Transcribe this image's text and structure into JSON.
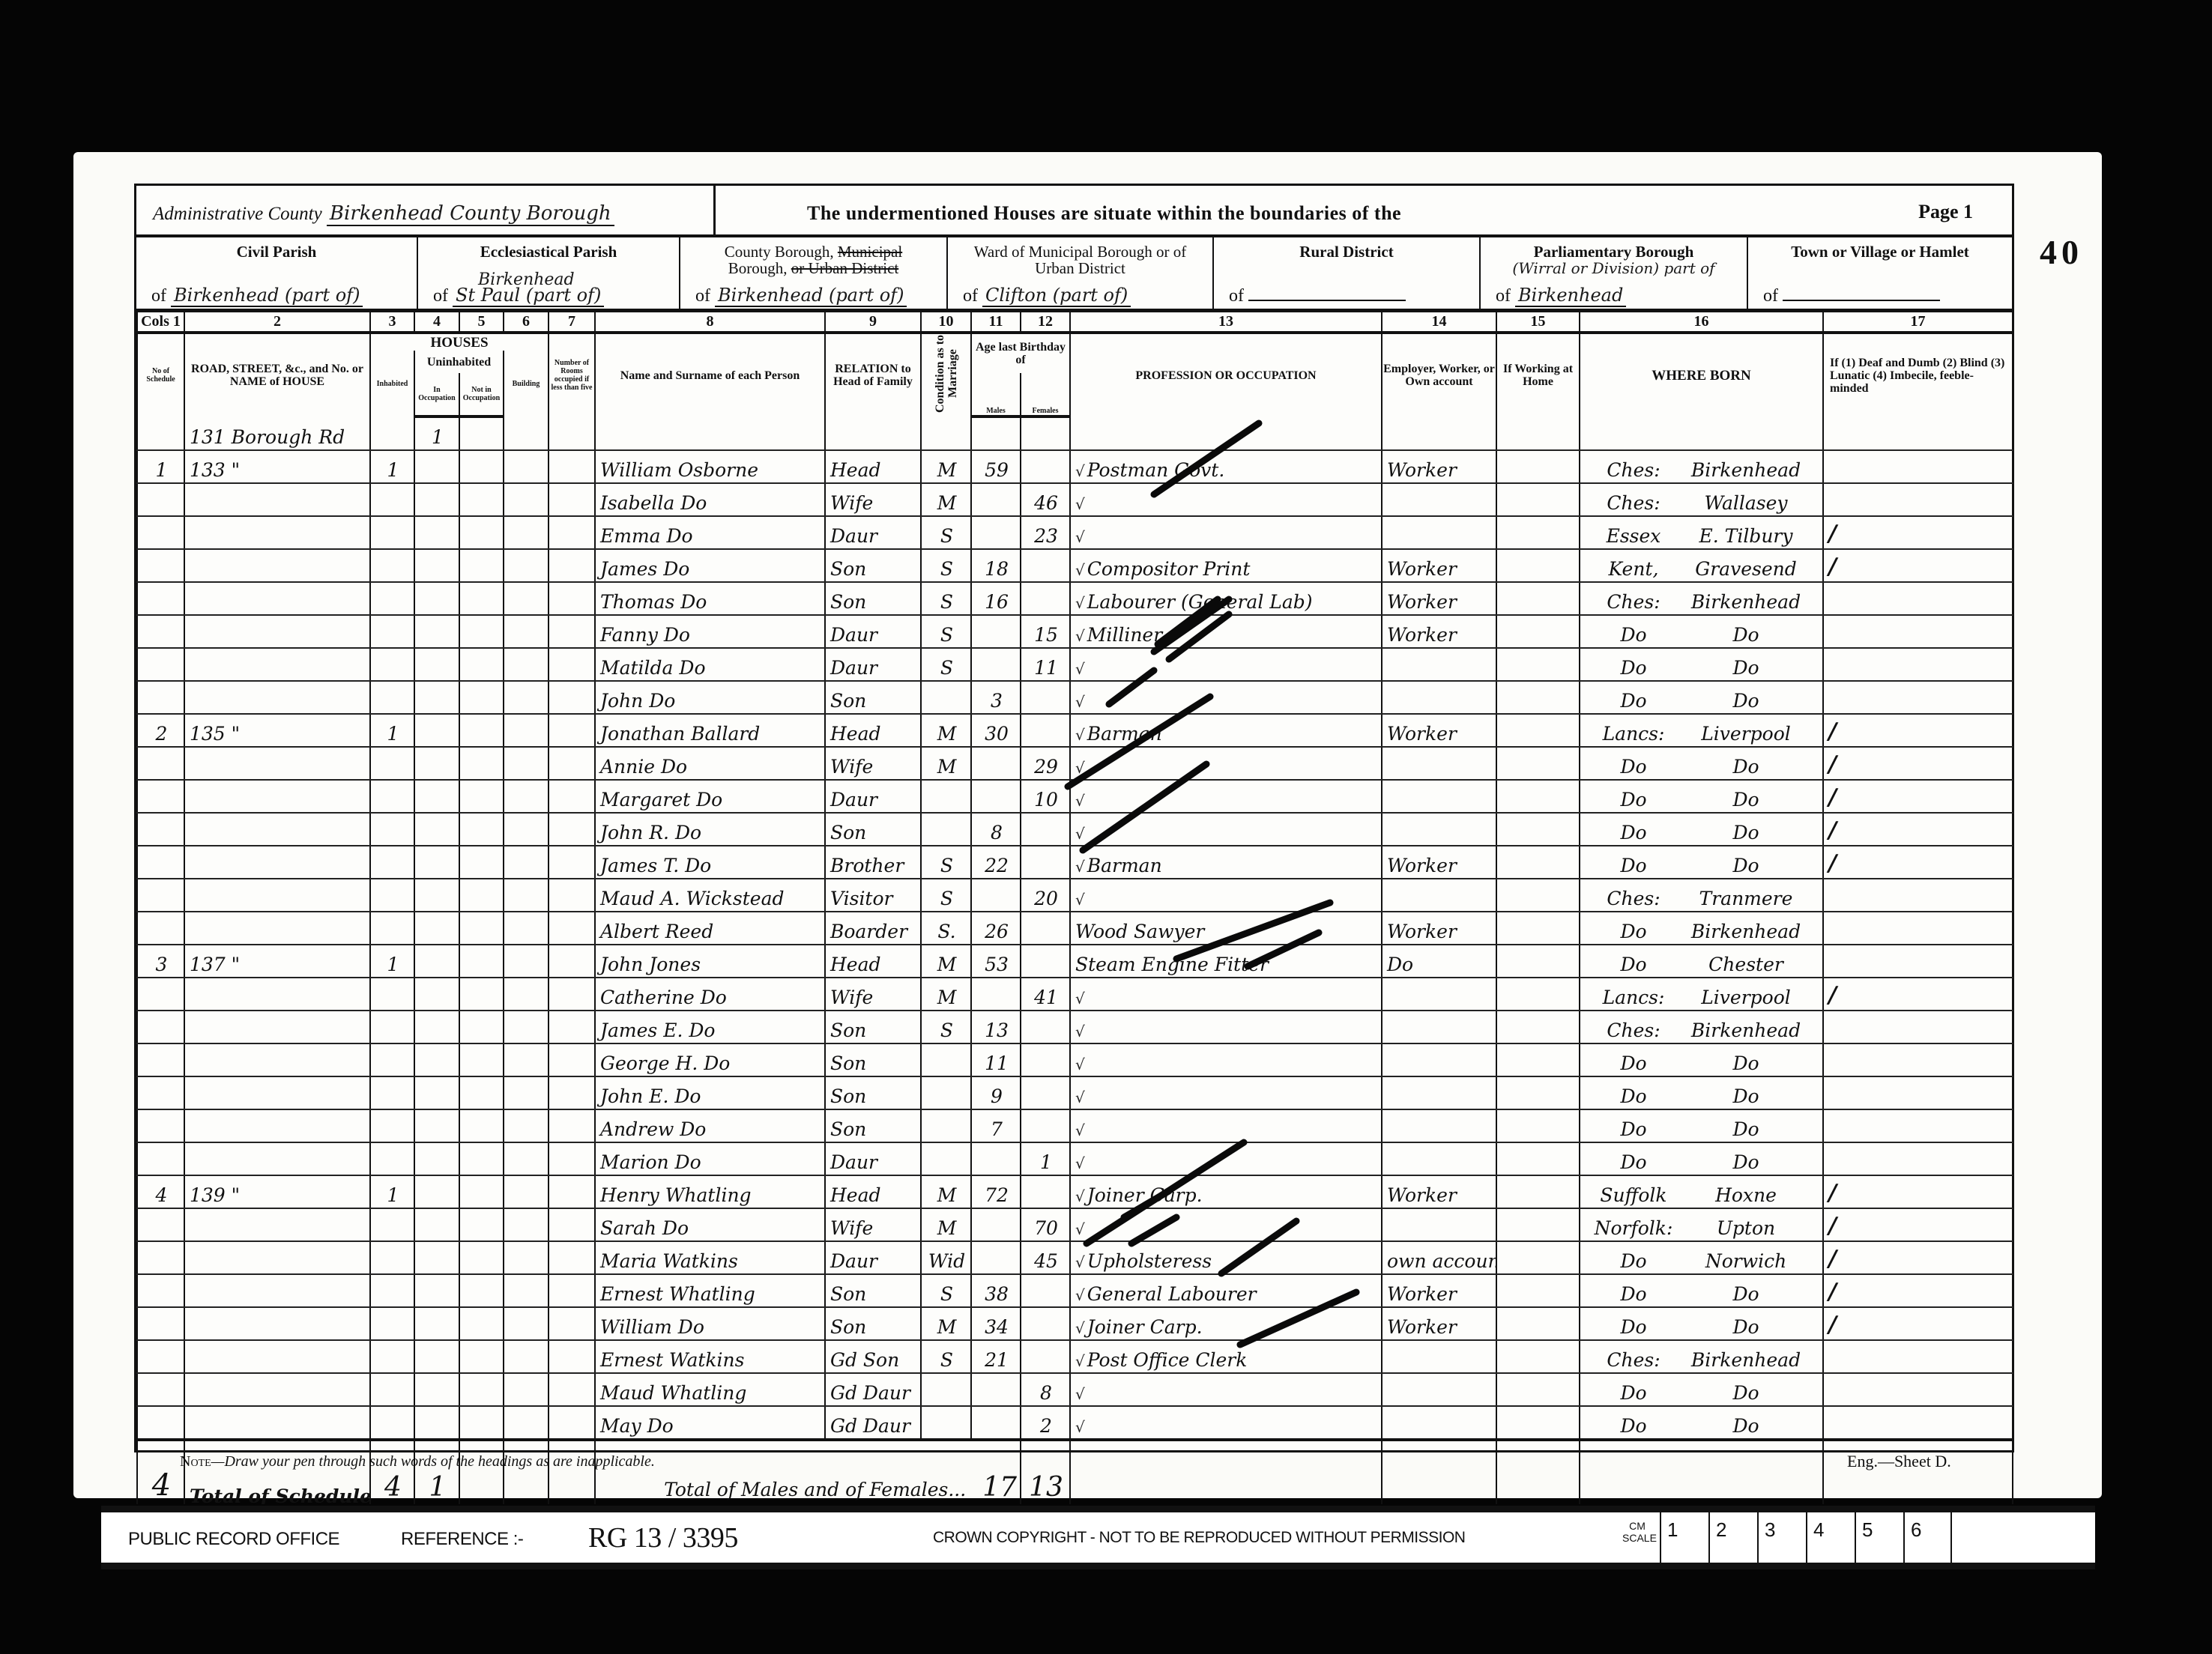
{
  "header": {
    "admin_county_label": "Administrative County",
    "admin_county_value": "Birkenhead County Borough",
    "undermentioned": "The undermentioned Houses are situate within the boundaries of the",
    "page": "Page 1",
    "folio": "40",
    "civil_parish": {
      "label": "Civil Parish",
      "of": "of",
      "value": "Birkenhead (part of)"
    },
    "ecclesiastical_parish": {
      "label": "Ecclesiastical Parish",
      "of": "of",
      "above": "Birkenhead",
      "value": "St Paul (part of)"
    },
    "county_borough": {
      "label_1": "County Borough,",
      "label_struck_1": "Municipal",
      "label_2": "Borough,",
      "label_struck_2": "or Urban District",
      "of": "of",
      "value": "Birkenhead (part of)"
    },
    "ward": {
      "label": "Ward of Municipal Borough or of Urban District",
      "of": "of",
      "value": "Clifton (part of)"
    },
    "rural_district": {
      "label": "Rural District",
      "of": "of",
      "value": ""
    },
    "parliamentary": {
      "label": "Parliamentary Borough",
      "division": "(Wirral or Division) part of",
      "of": "of",
      "value": "Birkenhead"
    },
    "town": {
      "label": "Town or Village or Hamlet",
      "of": "of",
      "value": ""
    }
  },
  "columns": {
    "numbers": [
      "Cols 1",
      "2",
      "3",
      "4",
      "5",
      "6",
      "7",
      "8",
      "9",
      "10",
      "11",
      "12",
      "13",
      "14",
      "15",
      "16",
      "17"
    ],
    "schedule": "No of Schedule",
    "road": "ROAD, STREET, &c., and No. or NAME of HOUSE",
    "houses": "HOUSES",
    "inhabited": "Inhabited",
    "uninhabited": "Uninhabited",
    "in_occupation": "In Occupation",
    "not_in_occupation": "Not in Occupation",
    "building": "Building",
    "rooms": "Number of Rooms occupied if less than five",
    "name": "Name and Surname of each Person",
    "relation": "RELATION to Head of Family",
    "condition": "Condition as to Marriage",
    "age": "Age last Birthday of",
    "males": "Males",
    "females": "Females",
    "occupation": "PROFESSION OR OCCUPATION",
    "employment": "Employer, Worker, or Own account",
    "at_home": "If Working at Home",
    "where_born": "WHERE BORN",
    "infirmity": "If (1) Deaf and Dumb (2) Blind (3) Lunatic (4) Imbecile, feeble-minded"
  },
  "rows": [
    {
      "schedule": "",
      "address": "131 Borough Rd",
      "inhabited": "",
      "in_occupation": "1",
      "name": "",
      "relation": "",
      "condition": "",
      "age_m": "",
      "age_f": "",
      "occupation": "",
      "employment": "",
      "born_county": "",
      "born_place": "",
      "tick": false,
      "col17": false
    },
    {
      "schedule": "1",
      "address": "133   \"",
      "inhabited": "1",
      "in_occupation": "",
      "name": "William Osborne",
      "relation": "Head",
      "condition": "M",
      "age_m": "59",
      "age_f": "",
      "occupation": "Postman Govt.",
      "employment": "Worker",
      "born_county": "Ches:",
      "born_place": "Birkenhead",
      "tick": true,
      "col17": false
    },
    {
      "schedule": "",
      "address": "",
      "inhabited": "",
      "in_occupation": "",
      "name": "Isabella   Do",
      "relation": "Wife",
      "condition": "M",
      "age_m": "",
      "age_f": "46",
      "occupation": "",
      "employment": "",
      "born_county": "Ches:",
      "born_place": "Wallasey",
      "tick": true,
      "col17": false
    },
    {
      "schedule": "",
      "address": "",
      "inhabited": "",
      "in_occupation": "",
      "name": "Emma   Do",
      "relation": "Daur",
      "condition": "S",
      "age_m": "",
      "age_f": "23",
      "occupation": "",
      "employment": "",
      "born_county": "Essex",
      "born_place": "E. Tilbury",
      "tick": true,
      "col17": true
    },
    {
      "schedule": "",
      "address": "",
      "inhabited": "",
      "in_occupation": "",
      "name": "James   Do",
      "relation": "Son",
      "condition": "S",
      "age_m": "18",
      "age_f": "",
      "occupation": "Compositor Print",
      "employment": "Worker",
      "born_county": "Kent,",
      "born_place": "Gravesend",
      "tick": true,
      "col17": true
    },
    {
      "schedule": "",
      "address": "",
      "inhabited": "",
      "in_occupation": "",
      "name": "Thomas   Do",
      "relation": "Son",
      "condition": "S",
      "age_m": "16",
      "age_f": "",
      "occupation": "Labourer (General Lab)",
      "employment": "Worker",
      "born_county": "Ches:",
      "born_place": "Birkenhead",
      "tick": true,
      "col17": false
    },
    {
      "schedule": "",
      "address": "",
      "inhabited": "",
      "in_occupation": "",
      "name": "Fanny   Do",
      "relation": "Daur",
      "condition": "S",
      "age_m": "",
      "age_f": "15",
      "occupation": "Milliner",
      "employment": "Worker",
      "born_county": "Do",
      "born_place": "Do",
      "tick": true,
      "col17": false
    },
    {
      "schedule": "",
      "address": "",
      "inhabited": "",
      "in_occupation": "",
      "name": "Matilda   Do",
      "relation": "Daur",
      "condition": "S",
      "age_m": "",
      "age_f": "11",
      "occupation": "",
      "employment": "",
      "born_county": "Do",
      "born_place": "Do",
      "tick": true,
      "col17": false
    },
    {
      "schedule": "",
      "address": "",
      "inhabited": "",
      "in_occupation": "",
      "name": "John   Do",
      "relation": "Son",
      "condition": "",
      "age_m": "3",
      "age_f": "",
      "occupation": "",
      "employment": "",
      "born_county": "Do",
      "born_place": "Do",
      "tick": true,
      "col17": false
    },
    {
      "schedule": "2",
      "address": "135   \"",
      "inhabited": "1",
      "in_occupation": "",
      "name": "Jonathan Ballard",
      "relation": "Head",
      "condition": "M",
      "age_m": "30",
      "age_f": "",
      "occupation": "Barman",
      "employment": "Worker",
      "born_county": "Lancs:",
      "born_place": "Liverpool",
      "tick": true,
      "col17": true
    },
    {
      "schedule": "",
      "address": "",
      "inhabited": "",
      "in_occupation": "",
      "name": "Annie   Do",
      "relation": "Wife",
      "condition": "M",
      "age_m": "",
      "age_f": "29",
      "occupation": "",
      "employment": "",
      "born_county": "Do",
      "born_place": "Do",
      "tick": true,
      "col17": true
    },
    {
      "schedule": "",
      "address": "",
      "inhabited": "",
      "in_occupation": "",
      "name": "Margaret   Do",
      "relation": "Daur",
      "condition": "",
      "age_m": "",
      "age_f": "10",
      "occupation": "",
      "employment": "",
      "born_county": "Do",
      "born_place": "Do",
      "tick": true,
      "col17": true
    },
    {
      "schedule": "",
      "address": "",
      "inhabited": "",
      "in_occupation": "",
      "name": "John R.   Do",
      "relation": "Son",
      "condition": "",
      "age_m": "8",
      "age_f": "",
      "occupation": "",
      "employment": "",
      "born_county": "Do",
      "born_place": "Do",
      "tick": true,
      "col17": true
    },
    {
      "schedule": "",
      "address": "",
      "inhabited": "",
      "in_occupation": "",
      "name": "James T.   Do",
      "relation": "Brother",
      "condition": "S",
      "age_m": "22",
      "age_f": "",
      "occupation": "Barman",
      "employment": "Worker",
      "born_county": "Do",
      "born_place": "Do",
      "tick": true,
      "col17": true
    },
    {
      "schedule": "",
      "address": "",
      "inhabited": "",
      "in_occupation": "",
      "name": "Maud A. Wickstead",
      "relation": "Visitor",
      "condition": "S",
      "age_m": "",
      "age_f": "20",
      "occupation": "",
      "employment": "",
      "born_county": "Ches:",
      "born_place": "Tranmere",
      "tick": true,
      "col17": false
    },
    {
      "schedule": "",
      "address": "",
      "inhabited": "",
      "in_occupation": "",
      "name": "Albert Reed",
      "relation": "Boarder",
      "condition": "S.",
      "age_m": "26",
      "age_f": "",
      "occupation": "Wood Sawyer",
      "employment": "Worker",
      "born_county": "Do",
      "born_place": "Birkenhead",
      "tick": false,
      "col17": false
    },
    {
      "schedule": "3",
      "address": "137   \"",
      "inhabited": "1",
      "in_occupation": "",
      "name": "John Jones",
      "relation": "Head",
      "condition": "M",
      "age_m": "53",
      "age_f": "",
      "occupation": "Steam Engine Fitter",
      "employment": "Do",
      "born_county": "Do",
      "born_place": "Chester",
      "tick": false,
      "col17": false
    },
    {
      "schedule": "",
      "address": "",
      "inhabited": "",
      "in_occupation": "",
      "name": "Catherine   Do",
      "relation": "Wife",
      "condition": "M",
      "age_m": "",
      "age_f": "41",
      "occupation": "",
      "employment": "",
      "born_county": "Lancs:",
      "born_place": "Liverpool",
      "tick": true,
      "col17": true
    },
    {
      "schedule": "",
      "address": "",
      "inhabited": "",
      "in_occupation": "",
      "name": "James E.   Do",
      "relation": "Son",
      "condition": "S",
      "age_m": "13",
      "age_f": "",
      "occupation": "",
      "employment": "",
      "born_county": "Ches:",
      "born_place": "Birkenhead",
      "tick": true,
      "col17": false
    },
    {
      "schedule": "",
      "address": "",
      "inhabited": "",
      "in_occupation": "",
      "name": "George H.   Do",
      "relation": "Son",
      "condition": "",
      "age_m": "11",
      "age_f": "",
      "occupation": "",
      "employment": "",
      "born_county": "Do",
      "born_place": "Do",
      "tick": true,
      "col17": false
    },
    {
      "schedule": "",
      "address": "",
      "inhabited": "",
      "in_occupation": "",
      "name": "John E.   Do",
      "relation": "Son",
      "condition": "",
      "age_m": "9",
      "age_f": "",
      "occupation": "",
      "employment": "",
      "born_county": "Do",
      "born_place": "Do",
      "tick": true,
      "col17": false
    },
    {
      "schedule": "",
      "address": "",
      "inhabited": "",
      "in_occupation": "",
      "name": "Andrew   Do",
      "relation": "Son",
      "condition": "",
      "age_m": "7",
      "age_f": "",
      "occupation": "",
      "employment": "",
      "born_county": "Do",
      "born_place": "Do",
      "tick": true,
      "col17": false
    },
    {
      "schedule": "",
      "address": "",
      "inhabited": "",
      "in_occupation": "",
      "name": "Marion   Do",
      "relation": "Daur",
      "condition": "",
      "age_m": "",
      "age_f": "1",
      "occupation": "",
      "employment": "",
      "born_county": "Do",
      "born_place": "Do",
      "tick": true,
      "col17": false
    },
    {
      "schedule": "4",
      "address": "139   \"",
      "inhabited": "1",
      "in_occupation": "",
      "name": "Henry Whatling",
      "relation": "Head",
      "condition": "M",
      "age_m": "72",
      "age_f": "",
      "occupation": "Joiner Carp.",
      "employment": "Worker",
      "born_county": "Suffolk",
      "born_place": "Hoxne",
      "tick": true,
      "col17": true
    },
    {
      "schedule": "",
      "address": "",
      "inhabited": "",
      "in_occupation": "",
      "name": "Sarah   Do",
      "relation": "Wife",
      "condition": "M",
      "age_m": "",
      "age_f": "70",
      "occupation": "",
      "employment": "",
      "born_county": "Norfolk:",
      "born_place": "Upton",
      "tick": true,
      "col17": true
    },
    {
      "schedule": "",
      "address": "",
      "inhabited": "",
      "in_occupation": "",
      "name": "Maria Watkins",
      "relation": "Daur",
      "condition": "Wid",
      "age_m": "",
      "age_f": "45",
      "occupation": "Upholsteress",
      "employment": "own account",
      "born_county": "Do",
      "born_place": "Norwich",
      "tick": true,
      "col17": true
    },
    {
      "schedule": "",
      "address": "",
      "inhabited": "",
      "in_occupation": "",
      "name": "Ernest Whatling",
      "relation": "Son",
      "condition": "S",
      "age_m": "38",
      "age_f": "",
      "occupation": "General Labourer",
      "employment": "Worker",
      "born_county": "Do",
      "born_place": "Do",
      "tick": true,
      "col17": true
    },
    {
      "schedule": "",
      "address": "",
      "inhabited": "",
      "in_occupation": "",
      "name": "William   Do",
      "relation": "Son",
      "condition": "M",
      "age_m": "34",
      "age_f": "",
      "occupation": "Joiner Carp.",
      "employment": "Worker",
      "born_county": "Do",
      "born_place": "Do",
      "tick": true,
      "col17": true
    },
    {
      "schedule": "",
      "address": "",
      "inhabited": "",
      "in_occupation": "",
      "name": "Ernest Watkins",
      "relation": "Gd Son",
      "condition": "S",
      "age_m": "21",
      "age_f": "",
      "occupation": "Post Office Clerk",
      "employment": "",
      "born_county": "Ches:",
      "born_place": "Birkenhead",
      "tick": true,
      "col17": false
    },
    {
      "schedule": "",
      "address": "",
      "inhabited": "",
      "in_occupation": "",
      "name": "Maud Whatling",
      "relation": "Gd Daur",
      "condition": "",
      "age_m": "",
      "age_f": "8",
      "occupation": "",
      "employment": "",
      "born_county": "Do",
      "born_place": "Do",
      "tick": true,
      "col17": false
    },
    {
      "schedule": "",
      "address": "",
      "inhabited": "",
      "in_occupation": "",
      "name": "May   Do",
      "relation": "Gd Daur",
      "condition": "",
      "age_m": "",
      "age_f": "2",
      "occupation": "",
      "employment": "",
      "born_county": "Do",
      "born_place": "Do",
      "tick": true,
      "col17": false
    }
  ],
  "totals": {
    "schedules": "4",
    "label": "Total of Schedules of Houses and of Tenements with less than Five Rooms",
    "inhabited": "4",
    "uninhabited": "1",
    "persons_label": "Total of Males and of Females...",
    "males": "17",
    "females": "13"
  },
  "footer_note": {
    "prefix": "Note",
    "text": "—Draw your pen through such words of the headings as are inapplicable.",
    "sheet": "Eng.—Sheet D."
  },
  "archive_bar": {
    "office": "PUBLIC RECORD OFFICE",
    "reference_label": "REFERENCE :-",
    "reference": "RG 13 / 3395",
    "copyright": "CROWN COPYRIGHT   -   NOT TO BE REPRODUCED WITHOUT PERMISSION",
    "scale_label": "CM SCALE",
    "scale": [
      "1",
      "2",
      "3",
      "4",
      "5",
      "6"
    ]
  }
}
